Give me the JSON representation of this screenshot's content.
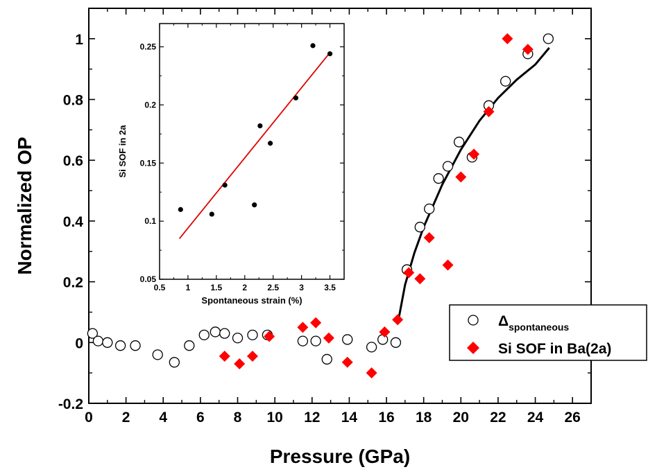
{
  "chart_data": [
    {
      "type": "scatter",
      "title": "",
      "xlabel": "Pressure (GPa)",
      "ylabel": "Normalized OP",
      "xlim": [
        0,
        27
      ],
      "ylim": [
        -0.2,
        1.1
      ],
      "xticks": [
        0,
        2,
        4,
        6,
        8,
        10,
        12,
        14,
        16,
        18,
        20,
        22,
        24,
        26
      ],
      "yticks": [
        -0.2,
        0,
        0.2,
        0.4,
        0.6,
        0.8,
        1
      ],
      "xtick_labels": [
        "0",
        "2",
        "4",
        "6",
        "8",
        "10",
        "12",
        "14",
        "16",
        "18",
        "20",
        "22",
        "24",
        "26"
      ],
      "ytick_labels": [
        "-0.2",
        "0",
        "0.2",
        "0.4",
        "0.6",
        "0.8",
        "1"
      ],
      "grid": false,
      "legend_position": "lower-right",
      "series": [
        {
          "name_main": "Δ",
          "name_sub": "spontaneous",
          "marker": "open-circle",
          "color": "#000000",
          "points": [
            [
              0.2,
              0.03
            ],
            [
              0.5,
              0.005
            ],
            [
              1.0,
              0.0
            ],
            [
              1.7,
              -0.01
            ],
            [
              2.5,
              -0.01
            ],
            [
              3.7,
              -0.04
            ],
            [
              4.6,
              -0.065
            ],
            [
              5.4,
              -0.01
            ],
            [
              6.2,
              0.025
            ],
            [
              6.8,
              0.035
            ],
            [
              7.3,
              0.03
            ],
            [
              8.0,
              0.015
            ],
            [
              8.8,
              0.025
            ],
            [
              9.6,
              0.025
            ],
            [
              11.5,
              0.005
            ],
            [
              12.2,
              0.005
            ],
            [
              12.8,
              -0.055
            ],
            [
              13.9,
              0.01
            ],
            [
              15.2,
              -0.015
            ],
            [
              15.8,
              0.01
            ],
            [
              16.5,
              0.0
            ],
            [
              17.1,
              0.24
            ],
            [
              17.8,
              0.38
            ],
            [
              18.3,
              0.44
            ],
            [
              18.8,
              0.54
            ],
            [
              19.3,
              0.58
            ],
            [
              19.9,
              0.66
            ],
            [
              20.6,
              0.61
            ],
            [
              21.5,
              0.78
            ],
            [
              22.4,
              0.86
            ],
            [
              23.6,
              0.95
            ],
            [
              24.7,
              1.0
            ]
          ]
        },
        {
          "name": "Si SOF in Ba(2a)",
          "marker": "filled-diamond",
          "color": "#ff0000",
          "points": [
            [
              7.3,
              -0.045
            ],
            [
              8.1,
              -0.07
            ],
            [
              8.8,
              -0.045
            ],
            [
              9.7,
              0.02
            ],
            [
              11.5,
              0.05
            ],
            [
              12.2,
              0.065
            ],
            [
              12.9,
              0.015
            ],
            [
              13.9,
              -0.065
            ],
            [
              15.2,
              -0.1
            ],
            [
              15.9,
              0.035
            ],
            [
              16.6,
              0.075
            ],
            [
              17.2,
              0.23
            ],
            [
              17.8,
              0.21
            ],
            [
              18.3,
              0.345
            ],
            [
              19.3,
              0.255
            ],
            [
              20.0,
              0.545
            ],
            [
              20.7,
              0.62
            ],
            [
              21.5,
              0.76
            ],
            [
              22.5,
              1.0
            ],
            [
              23.6,
              0.965
            ]
          ]
        },
        {
          "name": "",
          "type": "line",
          "color": "#000000",
          "points": [
            [
              16.6,
              0.06
            ],
            [
              17.0,
              0.19
            ],
            [
              17.5,
              0.295
            ],
            [
              18.0,
              0.38
            ],
            [
              19.0,
              0.52
            ],
            [
              20.0,
              0.635
            ],
            [
              21.0,
              0.73
            ],
            [
              22.0,
              0.805
            ],
            [
              23.0,
              0.865
            ],
            [
              24.0,
              0.915
            ],
            [
              24.75,
              0.97
            ]
          ]
        }
      ]
    },
    {
      "type": "scatter",
      "title": "",
      "xlabel": "Spontaneous strain (%)",
      "ylabel": "Si SOF in 2a",
      "xlim": [
        0.5,
        3.75
      ],
      "ylim": [
        0.05,
        0.27
      ],
      "xticks": [
        0.5,
        1,
        1.5,
        2,
        2.5,
        3,
        3.5
      ],
      "yticks": [
        0.05,
        0.1,
        0.15,
        0.2,
        0.25
      ],
      "xtick_labels": [
        "0.5",
        "1",
        "1.5",
        "2",
        "2.5",
        "3",
        "3.5"
      ],
      "ytick_labels": [
        "0.05",
        "0.1",
        "0.15",
        "0.2",
        "0.25"
      ],
      "grid": false,
      "series": [
        {
          "name": "",
          "marker": "filled-circle",
          "color": "#000000",
          "points": [
            [
              0.87,
              0.11
            ],
            [
              1.42,
              0.106
            ],
            [
              1.65,
              0.131
            ],
            [
              2.17,
              0.114
            ],
            [
              2.27,
              0.182
            ],
            [
              2.45,
              0.167
            ],
            [
              2.9,
              0.206
            ],
            [
              3.2,
              0.251
            ],
            [
              3.5,
              0.244
            ]
          ]
        },
        {
          "name": "",
          "type": "line",
          "color": "#e00000",
          "points": [
            [
              0.85,
              0.085
            ],
            [
              3.5,
              0.245
            ]
          ]
        }
      ]
    }
  ]
}
